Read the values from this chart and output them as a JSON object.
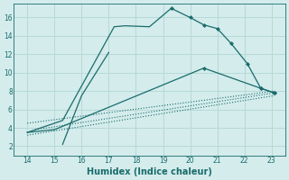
{
  "xlabel": "Humidex (Indice chaleur)",
  "bg_color": "#d4ecec",
  "grid_color": "#b8d8d8",
  "line_color": "#1a6b6b",
  "xlim": [
    13.5,
    23.5
  ],
  "ylim": [
    1.0,
    17.5
  ],
  "xticks": [
    14,
    15,
    16,
    17,
    18,
    19,
    20,
    21,
    22,
    23
  ],
  "yticks": [
    2,
    4,
    6,
    8,
    10,
    12,
    14,
    16
  ],
  "curve_main": {
    "x": [
      14.0,
      15.3,
      17.2,
      17.6,
      18.5,
      19.3,
      20.0,
      20.5,
      21.0,
      21.5,
      22.1,
      22.6,
      23.1
    ],
    "y": [
      3.5,
      4.8,
      15.0,
      15.1,
      15.0,
      17.0,
      16.0,
      15.2,
      14.8,
      13.2,
      11.0,
      8.3,
      7.8
    ]
  },
  "markers_main": {
    "x": [
      19.3,
      20.0,
      20.5,
      21.0,
      21.5,
      22.1,
      22.6,
      23.1
    ],
    "y": [
      17.0,
      16.0,
      15.2,
      14.8,
      13.2,
      11.0,
      8.3,
      7.8
    ]
  },
  "curve_sharp": {
    "x": [
      15.3,
      16.0,
      17.0
    ],
    "y": [
      2.2,
      7.5,
      12.2
    ]
  },
  "line_diag1": {
    "x": [
      14.0,
      15.0,
      20.5,
      22.6,
      23.1
    ],
    "y": [
      3.5,
      3.8,
      10.5,
      8.3,
      7.8
    ]
  },
  "marker_diag1": {
    "x": [
      20.5,
      22.6,
      23.1
    ],
    "y": [
      10.5,
      8.3,
      7.8
    ]
  },
  "line_diag2": {
    "x": [
      14.3,
      23.1
    ],
    "y": [
      3.8,
      8.0
    ]
  },
  "line_diag3": {
    "x": [
      14.0,
      23.1
    ],
    "y": [
      4.5,
      7.8
    ]
  },
  "line_diag4": {
    "x": [
      14.0,
      23.1
    ],
    "y": [
      3.5,
      7.5
    ]
  },
  "line_diag5": {
    "x": [
      14.5,
      23.1
    ],
    "y": [
      2.8,
      7.5
    ]
  }
}
